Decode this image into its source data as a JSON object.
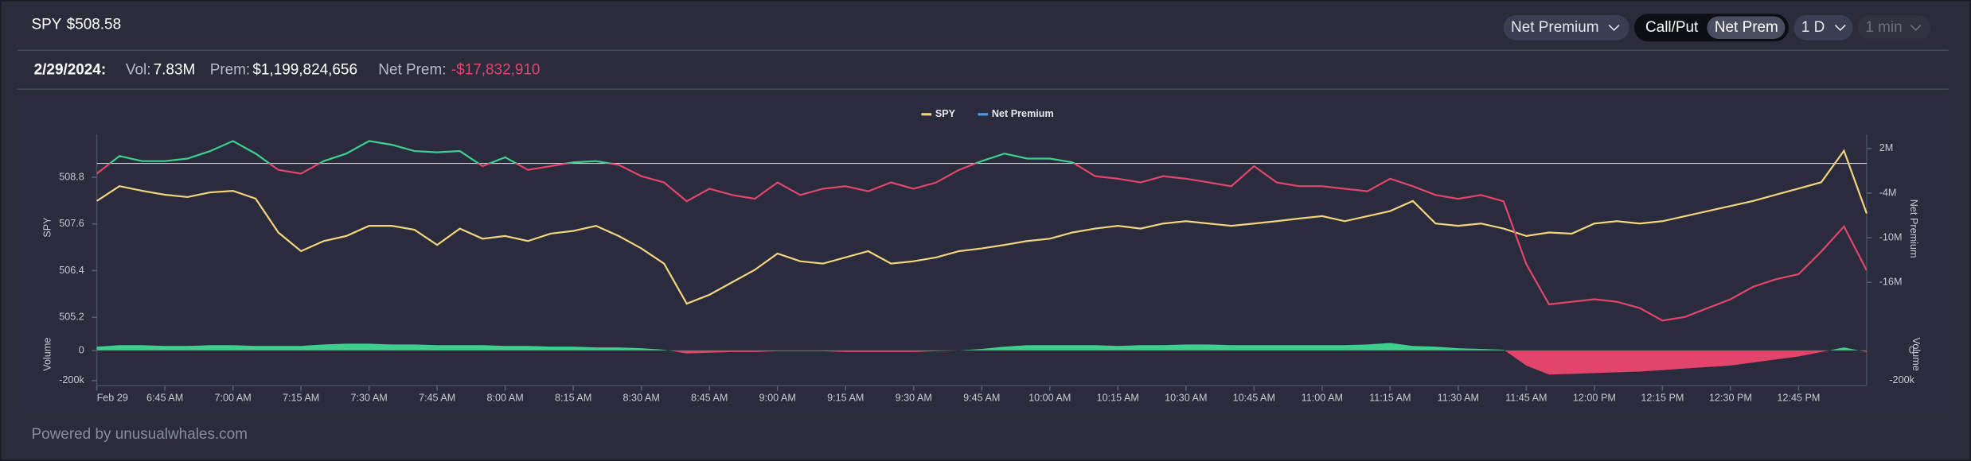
{
  "header": {
    "symbol": "SPY",
    "price": "$508.58"
  },
  "controls": [
    "Net Premium",
    "Call/Put",
    "Net Prem",
    "1 D",
    "1 min"
  ],
  "stats": {
    "date": "2/29/2024:",
    "vol_label": "Vol:",
    "vol": "7.83M",
    "prem_label": "Prem:",
    "prem": "$1,199,824,656",
    "net_label": "Net Prem:",
    "net": "-$17,832,910"
  },
  "footer": "Powered by unusualwhales.com",
  "chart_data": [
    {
      "type": "line",
      "ylabel": "SPY",
      "y2label": "Net Premium",
      "legend": "top",
      "categories": [
        "Feb 29",
        null,
        null,
        "6:45 AM",
        null,
        null,
        "7:00 AM",
        null,
        null,
        "7:15 AM",
        null,
        null,
        "7:30 AM",
        null,
        null,
        "7:45 AM",
        null,
        null,
        "8:00 AM",
        null,
        null,
        "8:15 AM",
        null,
        null,
        "8:30 AM",
        null,
        null,
        "8:45 AM",
        null,
        null,
        "9:00 AM",
        null,
        null,
        "9:15 AM",
        null,
        null,
        "9:30 AM",
        null,
        null,
        "9:45 AM",
        null,
        null,
        "10:00 AM",
        null,
        null,
        "10:15 AM",
        null,
        null,
        "10:30 AM",
        null,
        null,
        "10:45 AM",
        null,
        null,
        "11:00 AM",
        null,
        null,
        "11:15 AM",
        null,
        null,
        "11:30 AM",
        null,
        null,
        "11:45 AM",
        null,
        null,
        "12:00 PM",
        null,
        null,
        "12:15 PM",
        null,
        null,
        "12:30 PM",
        null,
        null,
        "12:45 PM",
        null,
        null,
        null
      ],
      "ylim": [
        504.8,
        509.9
      ],
      "yticks": [
        505.2,
        506.4,
        507.6,
        508.8
      ],
      "y2lim": [
        -22800000,
        3900000
      ],
      "y2ticks": [
        {
          "value": -16000000,
          "label": "-16M"
        },
        {
          "value": -10000000,
          "label": "-10M"
        },
        {
          "value": -4000000,
          "label": "-4M"
        },
        {
          "value": 2000000,
          "label": "2M"
        }
      ],
      "series": [
        {
          "name": "SPY",
          "color": "#f2d47c",
          "values": [
            508.19,
            508.57,
            508.45,
            508.35,
            508.29,
            508.41,
            508.45,
            508.25,
            507.38,
            506.9,
            507.16,
            507.29,
            507.55,
            507.55,
            507.45,
            507.06,
            507.48,
            507.22,
            507.29,
            507.16,
            507.35,
            507.42,
            507.55,
            507.29,
            506.97,
            506.58,
            505.55,
            505.78,
            506.1,
            506.42,
            506.84,
            506.64,
            506.58,
            506.74,
            506.9,
            506.58,
            506.64,
            506.74,
            506.9,
            506.97,
            507.06,
            507.16,
            507.22,
            507.38,
            507.48,
            507.55,
            507.48,
            507.61,
            507.67,
            507.61,
            507.55,
            507.61,
            507.67,
            507.74,
            507.8,
            507.67,
            507.8,
            507.93,
            508.19,
            507.61,
            507.55,
            507.61,
            507.48,
            507.29,
            507.38,
            507.35,
            507.61,
            507.67,
            507.61,
            507.67,
            507.8,
            507.93,
            508.06,
            508.19,
            508.35,
            508.51,
            508.67,
            509.48,
            507.87
          ]
        },
        {
          "name": "Net Premium",
          "axis": "y2",
          "color": "#4c9be8",
          "positive_color": "#3ccf8e",
          "negative_color": "#e2456c",
          "values": [
            -1380000,
            990000,
            310000,
            310000,
            650000,
            1660000,
            3010000,
            1320000,
            -870000,
            -1380000,
            310000,
            1320000,
            3010000,
            2510000,
            1660000,
            1490000,
            1660000,
            -370000,
            820000,
            -870000,
            -370000,
            140000,
            310000,
            -200000,
            -1720000,
            -2560000,
            -5100000,
            -3410000,
            -4250000,
            -4760000,
            -2560000,
            -4250000,
            -3410000,
            -3070000,
            -3750000,
            -2560000,
            -3410000,
            -2560000,
            -870000,
            310000,
            1320000,
            650000,
            650000,
            140000,
            -1720000,
            -2060000,
            -2560000,
            -1720000,
            -2060000,
            -2560000,
            -3070000,
            -370000,
            -2560000,
            -3070000,
            -3070000,
            -3410000,
            -3750000,
            -2060000,
            -3070000,
            -4250000,
            -4760000,
            -4250000,
            -5100000,
            -13550000,
            -18960000,
            -18620000,
            -18280000,
            -18620000,
            -19460000,
            -21150000,
            -20650000,
            -19460000,
            -18280000,
            -16590000,
            -15580000,
            -14900000,
            -11860000,
            -8480000,
            -14390000
          ]
        }
      ]
    },
    {
      "type": "area",
      "ylabel": "Volume",
      "y2label": "Volume",
      "positive_color": "#3ccf8e",
      "negative_color": "#e2456c",
      "ylim": [
        -225000,
        75000
      ],
      "yticks": [
        {
          "value": -200000,
          "label": "-200k"
        },
        0
      ],
      "values": [
        25000,
        35000,
        35000,
        30000,
        30000,
        35000,
        35000,
        30000,
        30000,
        30000,
        40000,
        45000,
        45000,
        40000,
        40000,
        35000,
        35000,
        35000,
        30000,
        30000,
        25000,
        25000,
        20000,
        20000,
        15000,
        5000,
        -20000,
        -15000,
        -10000,
        -10000,
        -5000,
        -5000,
        -5000,
        -10000,
        -10000,
        -10000,
        -10000,
        -5000,
        0,
        10000,
        25000,
        35000,
        35000,
        35000,
        35000,
        30000,
        35000,
        35000,
        40000,
        40000,
        35000,
        35000,
        35000,
        35000,
        35000,
        35000,
        40000,
        50000,
        30000,
        25000,
        15000,
        10000,
        5000,
        -100000,
        -160000,
        -155000,
        -150000,
        -145000,
        -140000,
        -130000,
        -120000,
        -110000,
        -100000,
        -80000,
        -60000,
        -40000,
        -10000,
        20000,
        -10000
      ]
    }
  ]
}
